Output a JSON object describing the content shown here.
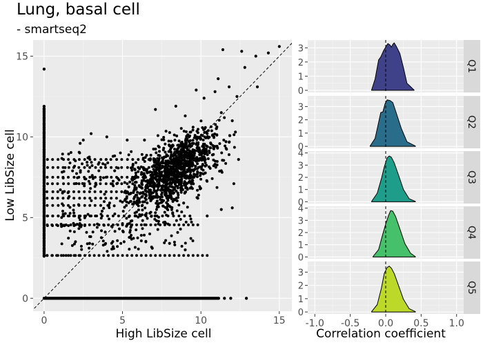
{
  "title": "Lung, basal cell",
  "subtitle": "- smartseq2",
  "chart_data": [
    {
      "type": "scatter",
      "xlabel": "High LibSize cell",
      "ylabel": "Low LibSize cell",
      "xlim": [
        -0.7,
        15.8
      ],
      "ylim": [
        -0.8,
        16.0
      ],
      "xticks": [
        0,
        5,
        10,
        15
      ],
      "yticks": [
        0,
        5,
        10,
        15
      ],
      "reference_line": {
        "slope": 1,
        "intercept": 0,
        "style": "dashed"
      },
      "grid": true,
      "background": "#ebebeb",
      "point_color": "#000000",
      "points": [
        [
          0.0,
          14.2
        ],
        [
          15.0,
          15.6
        ],
        [
          14.3,
          15.2
        ],
        [
          13.5,
          15.0
        ],
        [
          12.6,
          15.3
        ],
        [
          11.4,
          15.4
        ],
        [
          12.8,
          14.3
        ],
        [
          13.6,
          13.1
        ],
        [
          12.3,
          12.5
        ],
        [
          11.8,
          13.1
        ],
        [
          11.1,
          13.6
        ],
        [
          10.9,
          12.8
        ],
        [
          10.2,
          12.4
        ],
        [
          9.7,
          12.9
        ],
        [
          2.5,
          9.8
        ],
        [
          2.8,
          8.7
        ],
        [
          2.6,
          7.4
        ],
        [
          3.0,
          10.2
        ],
        [
          2.3,
          9.6
        ],
        [
          4.0,
          10.0
        ],
        [
          5.3,
          9.8
        ],
        [
          6.4,
          9.8
        ],
        [
          7.1,
          11.7
        ],
        [
          8.4,
          11.9
        ],
        [
          9.0,
          11.3
        ],
        [
          9.5,
          10.6
        ],
        [
          10.4,
          10.2
        ],
        [
          11.3,
          11.5
        ],
        [
          12.0,
          11.0
        ],
        [
          12.2,
          10.3
        ],
        [
          11.6,
          9.7
        ],
        [
          10.8,
          9.3
        ],
        [
          10.9,
          8.3
        ],
        [
          11.3,
          7.9
        ],
        [
          12.4,
          8.6
        ],
        [
          12.1,
          7.1
        ],
        [
          12.0,
          5.6
        ],
        [
          11.3,
          5.5
        ],
        [
          10.4,
          5.1
        ],
        [
          9.8,
          6.2
        ],
        [
          8.9,
          5.9
        ],
        [
          8.2,
          5.3
        ],
        [
          7.9,
          4.6
        ],
        [
          7.1,
          5.3
        ],
        [
          6.3,
          6.5
        ],
        [
          5.4,
          6.9
        ],
        [
          4.5,
          7.9
        ],
        [
          3.7,
          5.4
        ],
        [
          3.4,
          4.6
        ],
        [
          2.2,
          5.8
        ],
        [
          1.6,
          6.3
        ],
        [
          1.3,
          4.5
        ],
        [
          2.0,
          3.5
        ],
        [
          2.9,
          3.4
        ],
        [
          4.4,
          3.2
        ],
        [
          5.1,
          3.5
        ],
        [
          6.2,
          3.9
        ],
        [
          6.9,
          3.1
        ],
        [
          8.0,
          3.4
        ],
        [
          9.0,
          3.0
        ],
        [
          3.9,
          4.1
        ],
        [
          4.8,
          4.3
        ],
        [
          5.6,
          4.8
        ],
        [
          0.0,
          14.2
        ]
      ],
      "x_zero_strip": {
        "x": 0,
        "y_range": [
          2.6,
          11.9
        ]
      },
      "y_zero_strip": {
        "y": 0,
        "x_range": [
          0,
          11.2
        ]
      }
    },
    {
      "type": "area",
      "subtype": "density ridges (faceted)",
      "xlabel": "Correlation coefficient",
      "xlim": [
        -1.1,
        1.1
      ],
      "xticks": [
        -1.0,
        -0.5,
        0.0,
        0.5,
        1.0
      ],
      "xtick_labels": [
        "-1.0",
        "-0.5",
        "0.0",
        "0.5",
        "1.0"
      ],
      "reference_line": {
        "x": 0,
        "style": "dashed"
      },
      "facets": [
        {
          "label": "Q1",
          "color": "#3f4288",
          "ylim": [
            -0.15,
            3.55
          ],
          "yticks": [
            0,
            1,
            2,
            3
          ],
          "x": [
            -0.2,
            -0.15,
            -0.1,
            -0.07,
            -0.03,
            0.0,
            0.03,
            0.06,
            0.08,
            0.1,
            0.12,
            0.15,
            0.2,
            0.25,
            0.3,
            0.4
          ],
          "y": [
            0.02,
            0.8,
            2.15,
            2.35,
            2.8,
            3.05,
            3.3,
            3.2,
            3.05,
            3.25,
            3.35,
            3.1,
            2.6,
            1.6,
            0.5,
            0.02
          ]
        },
        {
          "label": "Q2",
          "color": "#2a6d8b",
          "ylim": [
            -0.15,
            3.8
          ],
          "yticks": [
            0,
            1,
            2,
            3
          ],
          "x": [
            -0.22,
            -0.15,
            -0.1,
            -0.07,
            -0.04,
            -0.01,
            0.02,
            0.06,
            0.1,
            0.15,
            0.22,
            0.3,
            0.42
          ],
          "y": [
            0.02,
            0.6,
            1.8,
            2.55,
            2.6,
            3.2,
            3.5,
            3.45,
            3.3,
            2.5,
            1.35,
            0.35,
            0.02
          ]
        },
        {
          "label": "Q3",
          "color": "#1e9e8a",
          "ylim": [
            -0.15,
            4.15
          ],
          "yticks": [
            0,
            1,
            2,
            3,
            4
          ],
          "x": [
            -0.2,
            -0.12,
            -0.06,
            -0.02,
            0.02,
            0.05,
            0.08,
            0.12,
            0.18,
            0.25,
            0.33,
            0.42
          ],
          "y": [
            0.02,
            0.7,
            1.9,
            2.85,
            3.6,
            3.75,
            3.65,
            3.2,
            2.2,
            1.0,
            0.25,
            0.02
          ]
        },
        {
          "label": "Q4",
          "color": "#46c06a",
          "ylim": [
            -0.15,
            4.15
          ],
          "yticks": [
            0,
            1,
            2,
            3,
            4
          ],
          "x": [
            -0.18,
            -0.1,
            -0.04,
            0.0,
            0.04,
            0.07,
            0.1,
            0.14,
            0.2,
            0.27,
            0.35,
            0.42
          ],
          "y": [
            0.02,
            0.6,
            1.9,
            2.7,
            3.4,
            3.8,
            3.75,
            3.3,
            2.3,
            1.1,
            0.3,
            0.02
          ]
        },
        {
          "label": "Q5",
          "color": "#bcd92a",
          "ylim": [
            -0.15,
            3.8
          ],
          "yticks": [
            0,
            1,
            2,
            3
          ],
          "x": [
            -0.2,
            -0.12,
            -0.06,
            -0.02,
            0.02,
            0.05,
            0.08,
            0.12,
            0.18,
            0.25,
            0.33,
            0.42
          ],
          "y": [
            0.02,
            0.55,
            1.8,
            2.9,
            3.35,
            3.45,
            3.3,
            2.9,
            2.0,
            0.95,
            0.25,
            0.02
          ]
        }
      ]
    }
  ]
}
